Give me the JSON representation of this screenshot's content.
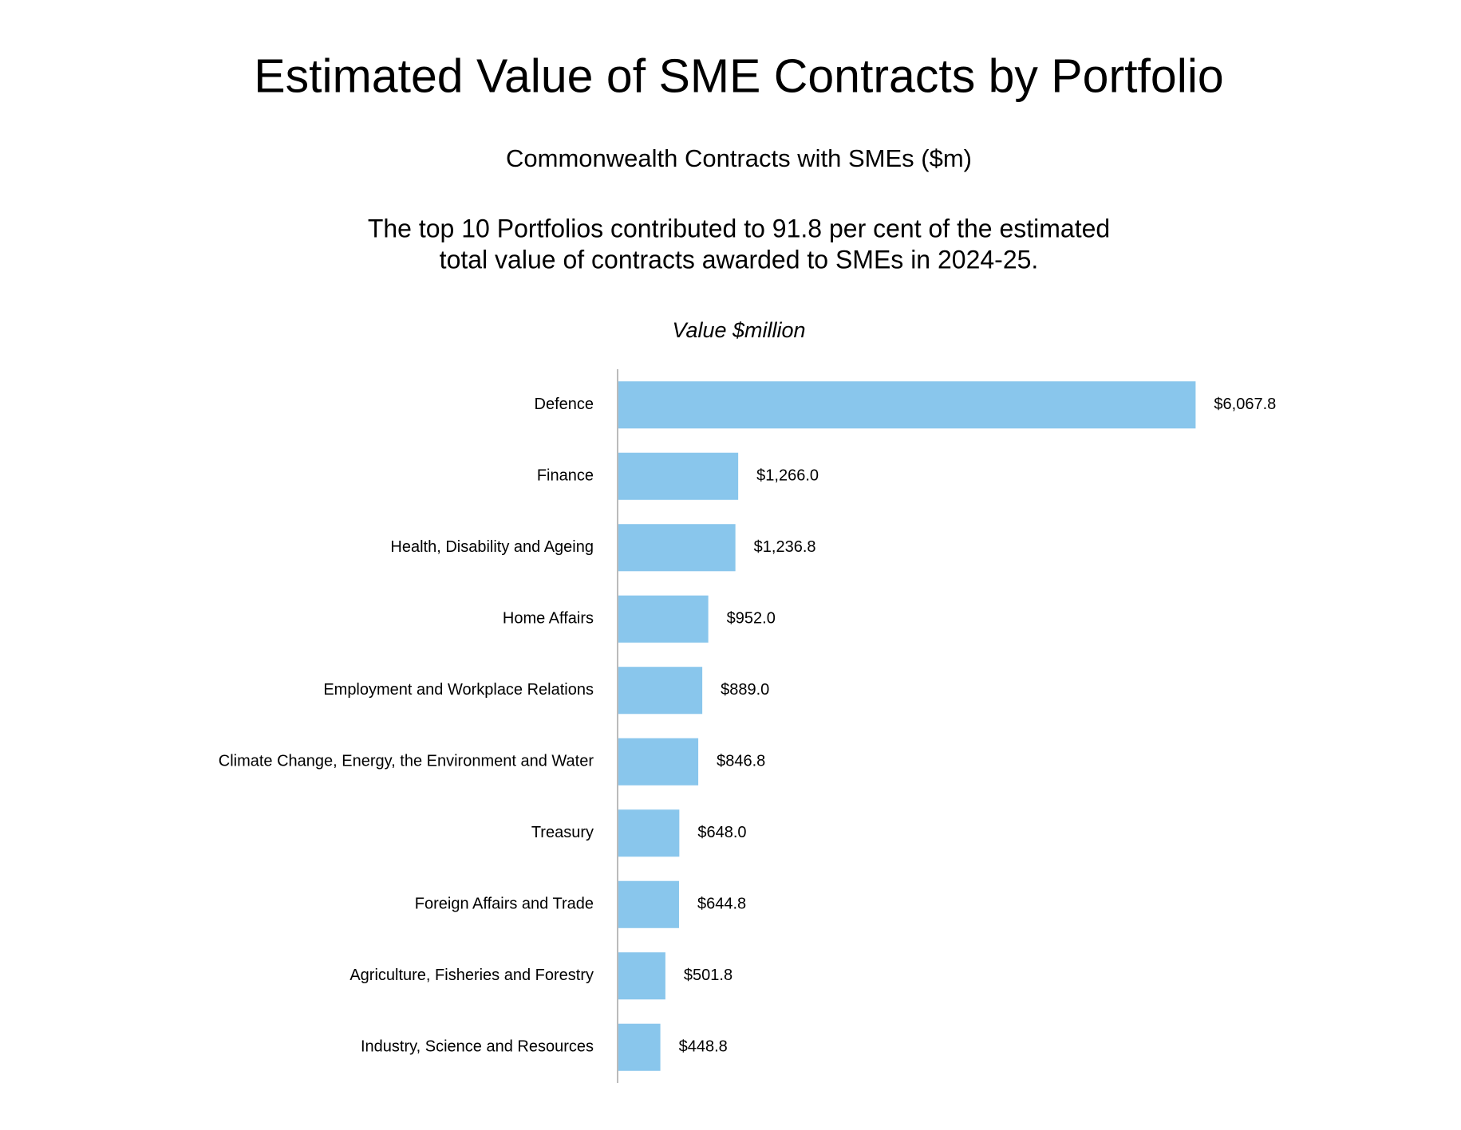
{
  "chart_data": {
    "type": "bar",
    "orientation": "horizontal",
    "title": "Estimated Value of SME Contracts by Portfolio",
    "subtitle": "Commonwealth Contracts with SMEs ($m)",
    "annotation": [
      "The top 10 Portfolios contributed to 91.8 per cent of the estimated",
      "total value of contracts awarded to SMEs in 2024-25."
    ],
    "x_label": "Value $million",
    "categories": [
      "Defence",
      "Finance",
      "Health, Disability and Ageing",
      "Home Affairs",
      "Employment and Workplace Relations",
      "Climate Change, Energy, the Environment and Water",
      "Treasury",
      "Foreign Affairs and Trade",
      "Agriculture, Fisheries and Forestry",
      "Industry, Science and Resources"
    ],
    "values": [
      6067.8,
      1266.0,
      1236.8,
      952.0,
      889.0,
      846.8,
      648.0,
      644.8,
      501.8,
      448.8
    ],
    "value_labels": [
      "$6,067.8",
      "$1,266.0",
      "$1,236.8",
      "$952.0",
      "$889.0",
      "$846.8",
      "$648.0",
      "$644.8",
      "$501.8",
      "$448.8"
    ],
    "color": "#89c6ec",
    "xlim": [
      0,
      6500
    ]
  }
}
